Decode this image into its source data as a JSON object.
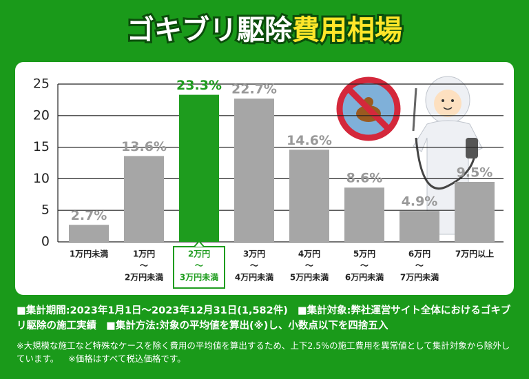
{
  "chart_data": {
    "type": "bar",
    "title": "ゴキブリ駆除",
    "title_highlight": "費用相場",
    "categories": [
      [
        "1万円未満"
      ],
      [
        "1万円",
        "〜",
        "2万円未満"
      ],
      [
        "2万円",
        "〜",
        "3万円未満"
      ],
      [
        "3万円",
        "〜",
        "4万円未満"
      ],
      [
        "4万円",
        "〜",
        "5万円未満"
      ],
      [
        "5万円",
        "〜",
        "6万円未満"
      ],
      [
        "6万円",
        "〜",
        "7万円未満"
      ],
      [
        "7万円以上"
      ]
    ],
    "values": [
      2.7,
      13.6,
      23.3,
      22.7,
      14.6,
      8.6,
      4.9,
      9.5
    ],
    "value_labels": [
      "2.7%",
      "13.6%",
      "23.3%",
      "22.7%",
      "14.6%",
      "8.6%",
      "4.9%",
      "9.5%"
    ],
    "colors": [
      "#a6a6a6",
      "#a6a6a6",
      "#1e9c1e",
      "#a6a6a6",
      "#a6a6a6",
      "#a6a6a6",
      "#a6a6a6",
      "#a6a6a6"
    ],
    "highlight_color": "#1e9c1e",
    "ylim": [
      0,
      25
    ],
    "yticks": [
      0,
      5,
      10,
      15,
      20,
      25
    ],
    "grid": true,
    "notes": [
      "■集計期間:2023年1月1日〜2023年12月31日(1,582件)",
      "■集計対象:弊社運営サイト全体におけるゴキブリ駆除の施工実績",
      "■集計方法:対象の平均値を算出(※)し、小数点以下を四捨五入"
    ],
    "footnotes": [
      "※大規模な施工など特殊なケースを除く費用の平均値を算出するため、上下2.5%の施工費用を異常値として集計対象から除外しています。",
      "※価格はすべて税込価格です。"
    ]
  }
}
